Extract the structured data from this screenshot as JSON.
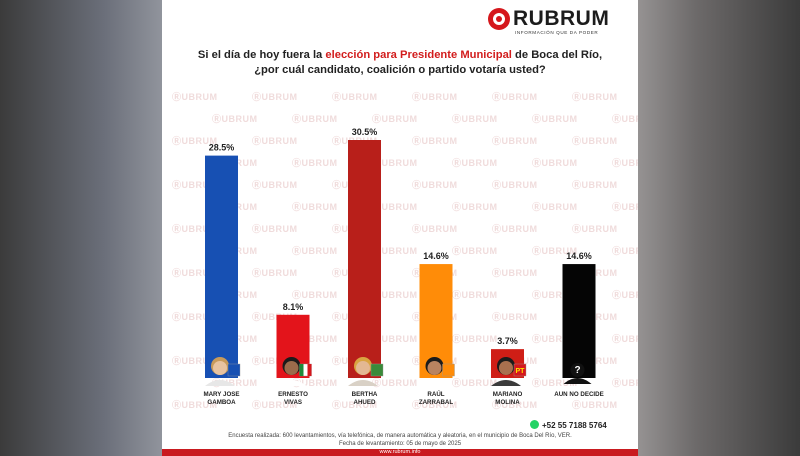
{
  "brand": {
    "name": "RUBRUM",
    "tagline": "INFORMACIÓN QUE DA PODER",
    "watermark": "RUBRUM"
  },
  "question": {
    "part1": "Si el día de hoy fuera la ",
    "highlight": "elección para Presidente Municipal",
    "part2": " de Boca del Río,",
    "line2": "¿por cuál candidato, coalición o partido votaría usted?"
  },
  "chart_data": {
    "type": "bar",
    "title": "",
    "xlabel": "",
    "ylabel": "",
    "ylim": [
      0,
      32
    ],
    "grid": false,
    "categories": [
      [
        "MARY JOSE",
        "GAMBOA"
      ],
      [
        "ERNESTO",
        "VIVAS"
      ],
      [
        "BERTHA",
        "AHUED"
      ],
      [
        "RAÚL",
        "ZARRABAL"
      ],
      [
        "MARIANO",
        "MOLINA"
      ],
      [
        "AUN NO DECIDE"
      ]
    ],
    "values": [
      28.5,
      8.1,
      30.5,
      14.6,
      3.7,
      14.6
    ],
    "data_labels": [
      "28.5%",
      "8.1%",
      "30.5%",
      "14.6%",
      "3.7%",
      "14.6%"
    ],
    "colors": [
      "#1750b3",
      "#e3141b",
      "#b81f1a",
      "#ff8c08",
      "#cf1e16",
      "#050505"
    ],
    "party_icons": [
      "pan-logo",
      "pri-logo",
      "morena-pvem-logo",
      "mc-logo",
      "pt-logo",
      "question-mark"
    ]
  },
  "contact": {
    "phone": "+52 55 7188 5764",
    "icon": "whatsapp-icon"
  },
  "footer": {
    "line1": "Encuesta realizada: 600 levantamientos, vía telefónica, de manera automática y aleatoria, en el municipio de Boca Del Río, VER.",
    "line2": "Fecha de levantamiento: 05 de mayo de 2025",
    "url": "www.rubrum.info"
  }
}
